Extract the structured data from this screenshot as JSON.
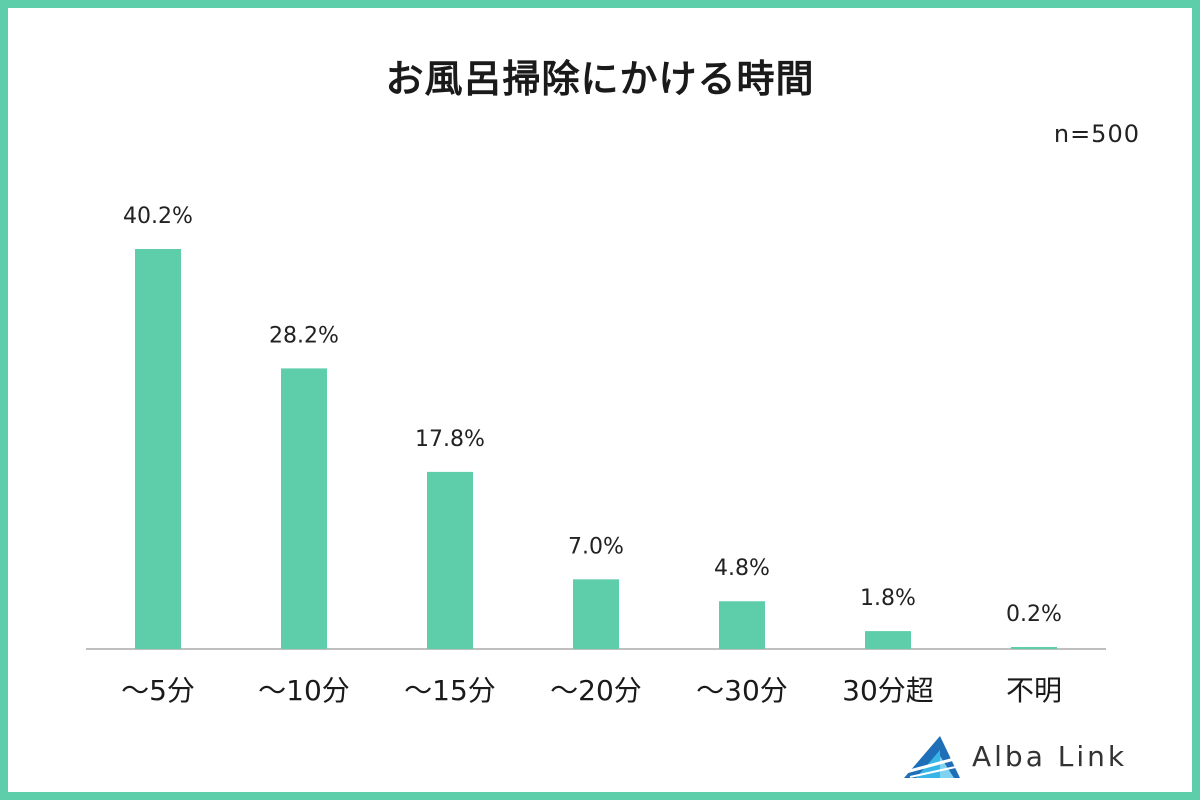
{
  "colors": {
    "frame": "#5ecdaa",
    "bar": "#5ecdaa",
    "text": "#222222",
    "axis": "#bfbfbf",
    "logo_dark": "#1e6fb8",
    "logo_light": "#35b6e6"
  },
  "brand": {
    "name": "Alba Link",
    "icon": "alba-link-logo-icon"
  },
  "chart_data": {
    "type": "bar",
    "title": "お風呂掃除にかける時間",
    "note": "n=500",
    "categories": [
      "～5分",
      "～10分",
      "～15分",
      "～20分",
      "～30分",
      "30分超",
      "不明"
    ],
    "values": [
      40.2,
      28.2,
      17.8,
      7.0,
      4.8,
      1.8,
      0.2
    ],
    "data_labels": [
      "40.2%",
      "28.2%",
      "17.8%",
      "7.0%",
      "4.8%",
      "1.8%",
      "0.2%"
    ],
    "unit": "%",
    "ylim": [
      0,
      40.2
    ],
    "grid": false,
    "legend": "none"
  }
}
